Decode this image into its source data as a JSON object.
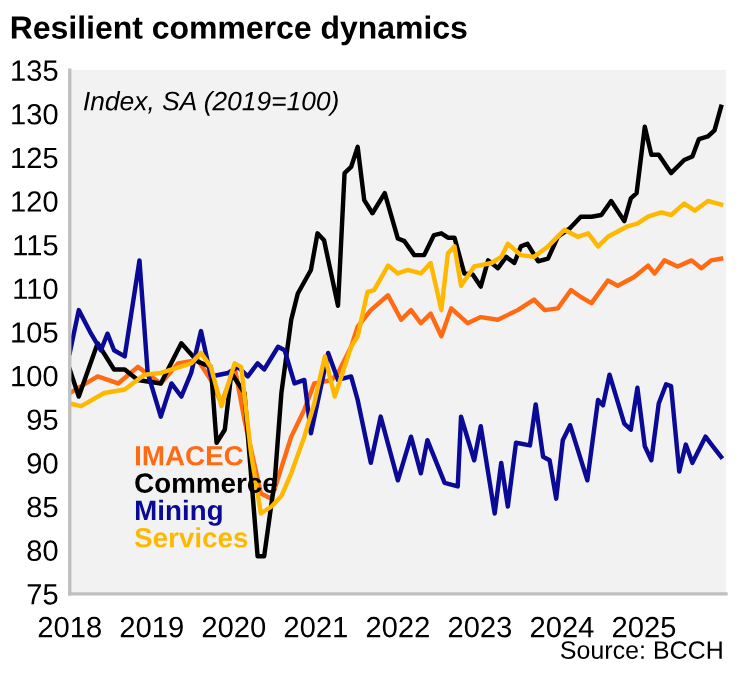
{
  "chart_data": {
    "type": "line",
    "title": "Resilient commerce dynamics",
    "annotations": [
      "Index, SA (2019=100)",
      "Source: BCCH"
    ],
    "xlim": [
      2018,
      2026
    ],
    "xticks": [
      2018,
      2019,
      2020,
      2021,
      2022,
      2023,
      2024,
      2025
    ],
    "ylim": [
      75,
      135
    ],
    "yticks": [
      75,
      80,
      85,
      90,
      95,
      100,
      105,
      110,
      115,
      120,
      125,
      130,
      135
    ],
    "grid": false,
    "legend": "bottom left",
    "marker": "none",
    "line_style": "solid",
    "series": [
      {
        "name": "IMACEC",
        "color": "#ff6a13",
        "x": [
          2018.0,
          2018.34,
          2018.59,
          2018.83,
          2019.11,
          2019.32,
          2019.56,
          2019.72,
          2019.85,
          2020.01,
          2020.13,
          2020.33,
          2020.46,
          2020.7,
          2020.86,
          2020.98,
          2021.19,
          2021.27,
          2021.43,
          2021.51,
          2021.67,
          2021.88,
          2022.04,
          2022.16,
          2022.28,
          2022.4,
          2022.53,
          2022.65,
          2022.85,
          2023.01,
          2023.22,
          2023.46,
          2023.66,
          2023.79,
          2023.95,
          2024.11,
          2024.23,
          2024.36,
          2024.56,
          2024.68,
          2024.88,
          2025.05,
          2025.13,
          2025.25,
          2025.41,
          2025.58,
          2025.7,
          2025.82,
          2025.94
        ],
        "values": [
          98,
          99.9,
          99.1,
          101,
          99.1,
          101.4,
          101.8,
          99.5,
          96.8,
          101,
          94.9,
          86.5,
          85.9,
          93,
          96.1,
          99.1,
          99.5,
          100.3,
          103.3,
          105.6,
          107.5,
          109.2,
          106.4,
          107.5,
          106,
          107.1,
          104.5,
          107.7,
          106,
          106.7,
          106.4,
          107.5,
          108.7,
          107.5,
          107.7,
          109.8,
          109,
          108.3,
          110.9,
          110.3,
          111.3,
          112.6,
          111.7,
          113.2,
          112.5,
          113.2,
          112.3,
          113.2,
          113.4
        ]
      },
      {
        "name": "Commerce",
        "color": "#000000",
        "x": [
          2018.0,
          2018.11,
          2018.34,
          2018.54,
          2018.67,
          2018.83,
          2019.11,
          2019.36,
          2019.56,
          2019.72,
          2019.79,
          2019.89,
          2019.97,
          2020.13,
          2020.29,
          2020.37,
          2020.5,
          2020.58,
          2020.7,
          2020.78,
          2020.94,
          2021.02,
          2021.1,
          2021.27,
          2021.35,
          2021.43,
          2021.51,
          2021.59,
          2021.69,
          2021.84,
          2022.0,
          2022.08,
          2022.2,
          2022.32,
          2022.44,
          2022.53,
          2022.61,
          2022.69,
          2022.81,
          2022.91,
          2023.01,
          2023.1,
          2023.22,
          2023.32,
          2023.42,
          2023.5,
          2023.58,
          2023.71,
          2023.83,
          2023.95,
          2024.1,
          2024.23,
          2024.36,
          2024.48,
          2024.6,
          2024.76,
          2024.84,
          2024.91,
          2025.01,
          2025.09,
          2025.18,
          2025.33,
          2025.49,
          2025.59,
          2025.67,
          2025.78,
          2025.86,
          2025.94
        ],
        "values": [
          100.7,
          97.6,
          103.7,
          100.7,
          100.7,
          99.5,
          99.1,
          103.7,
          101.6,
          101,
          92.3,
          93.8,
          100.3,
          98,
          79.3,
          79.3,
          88.1,
          98,
          106.4,
          109.4,
          112.1,
          116.3,
          115.5,
          108,
          123.2,
          123.9,
          126.2,
          120.1,
          118.6,
          120.9,
          115.7,
          115.4,
          113.8,
          113.8,
          116.1,
          116.3,
          115.8,
          115.8,
          111.7,
          111.6,
          110.2,
          113.2,
          112.3,
          113.6,
          112.9,
          114.8,
          115.1,
          113.1,
          113.4,
          115.9,
          116.9,
          118.2,
          118.2,
          118.4,
          120,
          117.7,
          120.3,
          120.9,
          128.5,
          125.3,
          125.3,
          123.2,
          124.7,
          125.1,
          127.1,
          127.4,
          128.1,
          130.8
        ]
      },
      {
        "name": "Mining",
        "color": "#0a0a96",
        "x": [
          2018.0,
          2018.11,
          2018.26,
          2018.38,
          2018.46,
          2018.54,
          2018.67,
          2018.85,
          2018.95,
          2019.11,
          2019.24,
          2019.36,
          2019.48,
          2019.6,
          2019.72,
          2019.93,
          2020.05,
          2020.17,
          2020.29,
          2020.37,
          2020.54,
          2020.62,
          2020.74,
          2020.86,
          2020.94,
          2021.07,
          2021.15,
          2021.27,
          2021.43,
          2021.51,
          2021.67,
          2021.79,
          2022.0,
          2022.16,
          2022.28,
          2022.36,
          2022.57,
          2022.73,
          2022.77,
          2022.93,
          2023.01,
          2023.18,
          2023.26,
          2023.34,
          2023.44,
          2023.61,
          2023.68,
          2023.77,
          2023.85,
          2023.93,
          2024.01,
          2024.1,
          2024.31,
          2024.44,
          2024.5,
          2024.58,
          2024.76,
          2024.84,
          2024.92,
          2025.01,
          2025.09,
          2025.18,
          2025.27,
          2025.33,
          2025.43,
          2025.51,
          2025.59,
          2025.75,
          2025.84,
          2025.94
        ],
        "values": [
          102.6,
          107.5,
          104.8,
          102.9,
          104.8,
          102.9,
          102.2,
          113.2,
          100.3,
          95.3,
          99.1,
          97.6,
          100.3,
          105.1,
          99.9,
          100.3,
          101,
          99.9,
          101.4,
          100.7,
          103.3,
          102.9,
          99.1,
          99.5,
          93.4,
          99.1,
          102.6,
          99.5,
          99.9,
          97.2,
          90,
          95.3,
          88,
          93,
          88.8,
          92.6,
          87.7,
          87.3,
          95.3,
          90.3,
          94.2,
          84.2,
          90,
          85,
          92.3,
          92,
          96.7,
          90.7,
          90.3,
          85.9,
          92.6,
          94.3,
          88,
          97.2,
          96.6,
          100.1,
          94.5,
          93.8,
          98.6,
          91.9,
          90.3,
          96.8,
          99,
          98.8,
          89,
          92.1,
          90,
          93,
          91.9,
          90.7
        ]
      },
      {
        "name": "Services",
        "color": "#ffb800",
        "x": [
          2018.0,
          2018.14,
          2018.42,
          2018.67,
          2018.91,
          2019.11,
          2019.48,
          2019.6,
          2019.72,
          2019.85,
          2020.01,
          2020.09,
          2020.21,
          2020.33,
          2020.46,
          2020.58,
          2020.7,
          2020.86,
          2020.98,
          2021.11,
          2021.23,
          2021.43,
          2021.51,
          2021.63,
          2021.71,
          2021.88,
          2022.0,
          2022.12,
          2022.28,
          2022.4,
          2022.53,
          2022.61,
          2022.69,
          2022.77,
          2022.93,
          2023.14,
          2023.26,
          2023.34,
          2023.5,
          2023.66,
          2023.83,
          2024.03,
          2024.19,
          2024.32,
          2024.44,
          2024.56,
          2024.72,
          2024.8,
          2024.92,
          2025.05,
          2025.21,
          2025.33,
          2025.49,
          2025.62,
          2025.78,
          2025.94
        ],
        "values": [
          96.8,
          96.5,
          98,
          98.4,
          100.1,
          100.3,
          101.4,
          102.6,
          101,
          96.5,
          101.4,
          101,
          91.1,
          84.2,
          85,
          86.2,
          88.8,
          93,
          96.8,
          102.2,
          97.6,
          103.3,
          104.5,
          109.6,
          109.8,
          112.6,
          111.7,
          112.1,
          111.7,
          112.9,
          107.5,
          114,
          114.8,
          110.3,
          112.5,
          112.9,
          113.6,
          115.1,
          113.8,
          113.6,
          114.8,
          116.7,
          115.9,
          116.3,
          114.8,
          115.9,
          116.7,
          117.1,
          117.4,
          118.2,
          118.7,
          118.4,
          119.7,
          118.9,
          120,
          119.6
        ]
      }
    ]
  }
}
